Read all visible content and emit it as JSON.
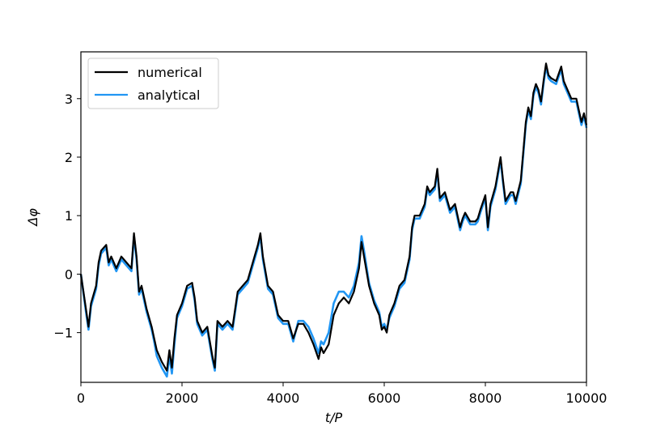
{
  "chart_data": {
    "type": "line",
    "xlabel": "t/P",
    "ylabel": "Δφ",
    "xlim": [
      0,
      10000
    ],
    "ylim": [
      -1.85,
      3.8
    ],
    "xticks": [
      0,
      2000,
      4000,
      6000,
      8000,
      10000
    ],
    "xtick_labels": [
      "0",
      "2000",
      "4000",
      "6000",
      "8000",
      "10000"
    ],
    "yticks": [
      -1,
      0,
      1,
      2,
      3
    ],
    "ytick_labels": [
      "−1",
      "0",
      "1",
      "2",
      "3"
    ],
    "grid": false,
    "legend_position": "top-left",
    "series": [
      {
        "name": "numerical",
        "color": "#000000",
        "x": [
          0,
          100,
          150,
          200,
          300,
          350,
          400,
          500,
          550,
          600,
          700,
          800,
          900,
          1000,
          1050,
          1100,
          1150,
          1200,
          1300,
          1400,
          1450,
          1500,
          1600,
          1700,
          1750,
          1800,
          1850,
          1900,
          2000,
          2100,
          2200,
          2250,
          2300,
          2400,
          2500,
          2600,
          2650,
          2700,
          2800,
          2900,
          3000,
          3100,
          3200,
          3300,
          3400,
          3500,
          3550,
          3600,
          3700,
          3800,
          3900,
          4000,
          4100,
          4200,
          4300,
          4400,
          4500,
          4600,
          4700,
          4750,
          4800,
          4900,
          5000,
          5100,
          5200,
          5300,
          5400,
          5500,
          5550,
          5600,
          5700,
          5800,
          5900,
          5950,
          6000,
          6050,
          6100,
          6200,
          6300,
          6400,
          6500,
          6550,
          6600,
          6700,
          6800,
          6850,
          6900,
          7000,
          7050,
          7100,
          7200,
          7300,
          7400,
          7500,
          7550,
          7600,
          7700,
          7800,
          7850,
          7900,
          8000,
          8050,
          8100,
          8200,
          8300,
          8350,
          8400,
          8500,
          8550,
          8600,
          8700,
          8800,
          8850,
          8900,
          8950,
          9000,
          9050,
          9100,
          9150,
          9200,
          9250,
          9300,
          9400,
          9500,
          9550,
          9600,
          9700,
          9800,
          9850,
          9900,
          9950,
          10000
        ],
        "y": [
          0,
          -0.6,
          -0.9,
          -0.5,
          -0.2,
          0.2,
          0.4,
          0.5,
          0.2,
          0.3,
          0.1,
          0.3,
          0.2,
          0.1,
          0.7,
          0.3,
          -0.3,
          -0.2,
          -0.6,
          -0.9,
          -1.1,
          -1.3,
          -1.5,
          -1.65,
          -1.3,
          -1.6,
          -1.1,
          -0.7,
          -0.5,
          -0.2,
          -0.15,
          -0.4,
          -0.8,
          -1.0,
          -0.9,
          -1.4,
          -1.6,
          -0.8,
          -0.9,
          -0.8,
          -0.9,
          -0.3,
          -0.2,
          -0.1,
          0.2,
          0.5,
          0.7,
          0.3,
          -0.2,
          -0.3,
          -0.7,
          -0.8,
          -0.8,
          -1.1,
          -0.85,
          -0.85,
          -1.0,
          -1.2,
          -1.45,
          -1.25,
          -1.35,
          -1.2,
          -0.7,
          -0.5,
          -0.4,
          -0.5,
          -0.3,
          0.1,
          0.55,
          0.3,
          -0.2,
          -0.5,
          -0.7,
          -0.95,
          -0.9,
          -1.0,
          -0.7,
          -0.5,
          -0.2,
          -0.1,
          0.3,
          0.8,
          1.0,
          1.0,
          1.2,
          1.5,
          1.4,
          1.5,
          1.8,
          1.3,
          1.4,
          1.1,
          1.2,
          0.8,
          0.95,
          1.05,
          0.9,
          0.9,
          0.95,
          1.1,
          1.35,
          0.8,
          1.2,
          1.5,
          2.0,
          1.6,
          1.25,
          1.4,
          1.4,
          1.25,
          1.6,
          2.6,
          2.85,
          2.7,
          3.1,
          3.25,
          3.15,
          2.95,
          3.3,
          3.6,
          3.4,
          3.35,
          3.3,
          3.55,
          3.3,
          3.2,
          3.0,
          3.0,
          2.8,
          2.6,
          2.75,
          2.55
        ]
      },
      {
        "name": "analytical",
        "color": "#2196f3",
        "x": [
          0,
          100,
          150,
          200,
          300,
          350,
          400,
          500,
          550,
          600,
          700,
          800,
          900,
          1000,
          1050,
          1100,
          1150,
          1200,
          1300,
          1400,
          1450,
          1500,
          1600,
          1700,
          1750,
          1800,
          1850,
          1900,
          2000,
          2100,
          2200,
          2250,
          2300,
          2400,
          2500,
          2600,
          2650,
          2700,
          2800,
          2900,
          3000,
          3100,
          3200,
          3300,
          3400,
          3500,
          3550,
          3600,
          3700,
          3800,
          3900,
          4000,
          4100,
          4200,
          4300,
          4400,
          4500,
          4600,
          4700,
          4750,
          4800,
          4900,
          5000,
          5100,
          5200,
          5300,
          5400,
          5500,
          5550,
          5600,
          5700,
          5800,
          5900,
          5950,
          6000,
          6050,
          6100,
          6200,
          6300,
          6400,
          6500,
          6550,
          6600,
          6700,
          6800,
          6850,
          6900,
          7000,
          7050,
          7100,
          7200,
          7300,
          7400,
          7500,
          7550,
          7600,
          7700,
          7800,
          7850,
          7900,
          8000,
          8050,
          8100,
          8200,
          8300,
          8350,
          8400,
          8500,
          8550,
          8600,
          8700,
          8800,
          8850,
          8900,
          8950,
          9000,
          9050,
          9100,
          9150,
          9200,
          9250,
          9300,
          9400,
          9500,
          9550,
          9600,
          9700,
          9800,
          9850,
          9900,
          9950,
          10000
        ],
        "y": [
          0,
          -0.65,
          -0.95,
          -0.55,
          -0.25,
          0.15,
          0.35,
          0.45,
          0.15,
          0.25,
          0.05,
          0.25,
          0.15,
          0.05,
          0.65,
          0.25,
          -0.35,
          -0.25,
          -0.65,
          -0.95,
          -1.15,
          -1.4,
          -1.6,
          -1.75,
          -1.4,
          -1.7,
          -1.2,
          -0.75,
          -0.55,
          -0.25,
          -0.2,
          -0.45,
          -0.85,
          -1.05,
          -0.95,
          -1.45,
          -1.65,
          -0.85,
          -0.95,
          -0.85,
          -0.95,
          -0.35,
          -0.25,
          -0.15,
          0.15,
          0.45,
          0.65,
          0.25,
          -0.25,
          -0.35,
          -0.75,
          -0.85,
          -0.85,
          -1.15,
          -0.8,
          -0.8,
          -0.9,
          -1.1,
          -1.35,
          -1.15,
          -1.2,
          -1.0,
          -0.5,
          -0.3,
          -0.3,
          -0.4,
          -0.2,
          0.2,
          0.65,
          0.4,
          -0.15,
          -0.45,
          -0.65,
          -0.9,
          -0.85,
          -0.95,
          -0.75,
          -0.55,
          -0.25,
          -0.15,
          0.25,
          0.75,
          0.95,
          0.95,
          1.15,
          1.45,
          1.35,
          1.45,
          1.75,
          1.25,
          1.35,
          1.05,
          1.15,
          0.75,
          0.9,
          1.0,
          0.85,
          0.85,
          0.9,
          1.05,
          1.3,
          0.75,
          1.15,
          1.45,
          1.95,
          1.55,
          1.2,
          1.35,
          1.35,
          1.2,
          1.55,
          2.55,
          2.8,
          2.65,
          3.05,
          3.2,
          3.1,
          2.9,
          3.25,
          3.55,
          3.35,
          3.3,
          3.25,
          3.5,
          3.25,
          3.15,
          2.95,
          2.95,
          2.75,
          2.55,
          2.7,
          2.5
        ]
      }
    ]
  }
}
